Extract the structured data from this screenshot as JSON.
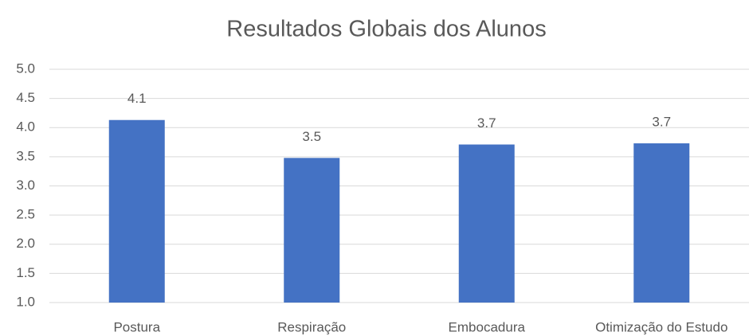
{
  "chart_data": {
    "type": "bar",
    "title": "Resultados Globais dos Alunos",
    "categories": [
      "Postura",
      "Respiração",
      "Embocadura",
      "Otimização do Estudo"
    ],
    "values": [
      4.13,
      3.48,
      3.71,
      3.73
    ],
    "value_labels": [
      "4.1",
      "3.5",
      "3.7",
      "3.7"
    ],
    "color": "#4472c4",
    "ylim": [
      1,
      5
    ],
    "yticks": [
      {
        "value": 1,
        "label": "1.0"
      },
      1.5,
      {
        "value": 2,
        "label": "2.0"
      },
      2.5,
      {
        "value": 3,
        "label": "3.0"
      },
      3.5,
      {
        "value": 4,
        "label": "4.0"
      },
      4.5,
      {
        "value": 5,
        "label": "5.0"
      }
    ],
    "grid": true
  }
}
